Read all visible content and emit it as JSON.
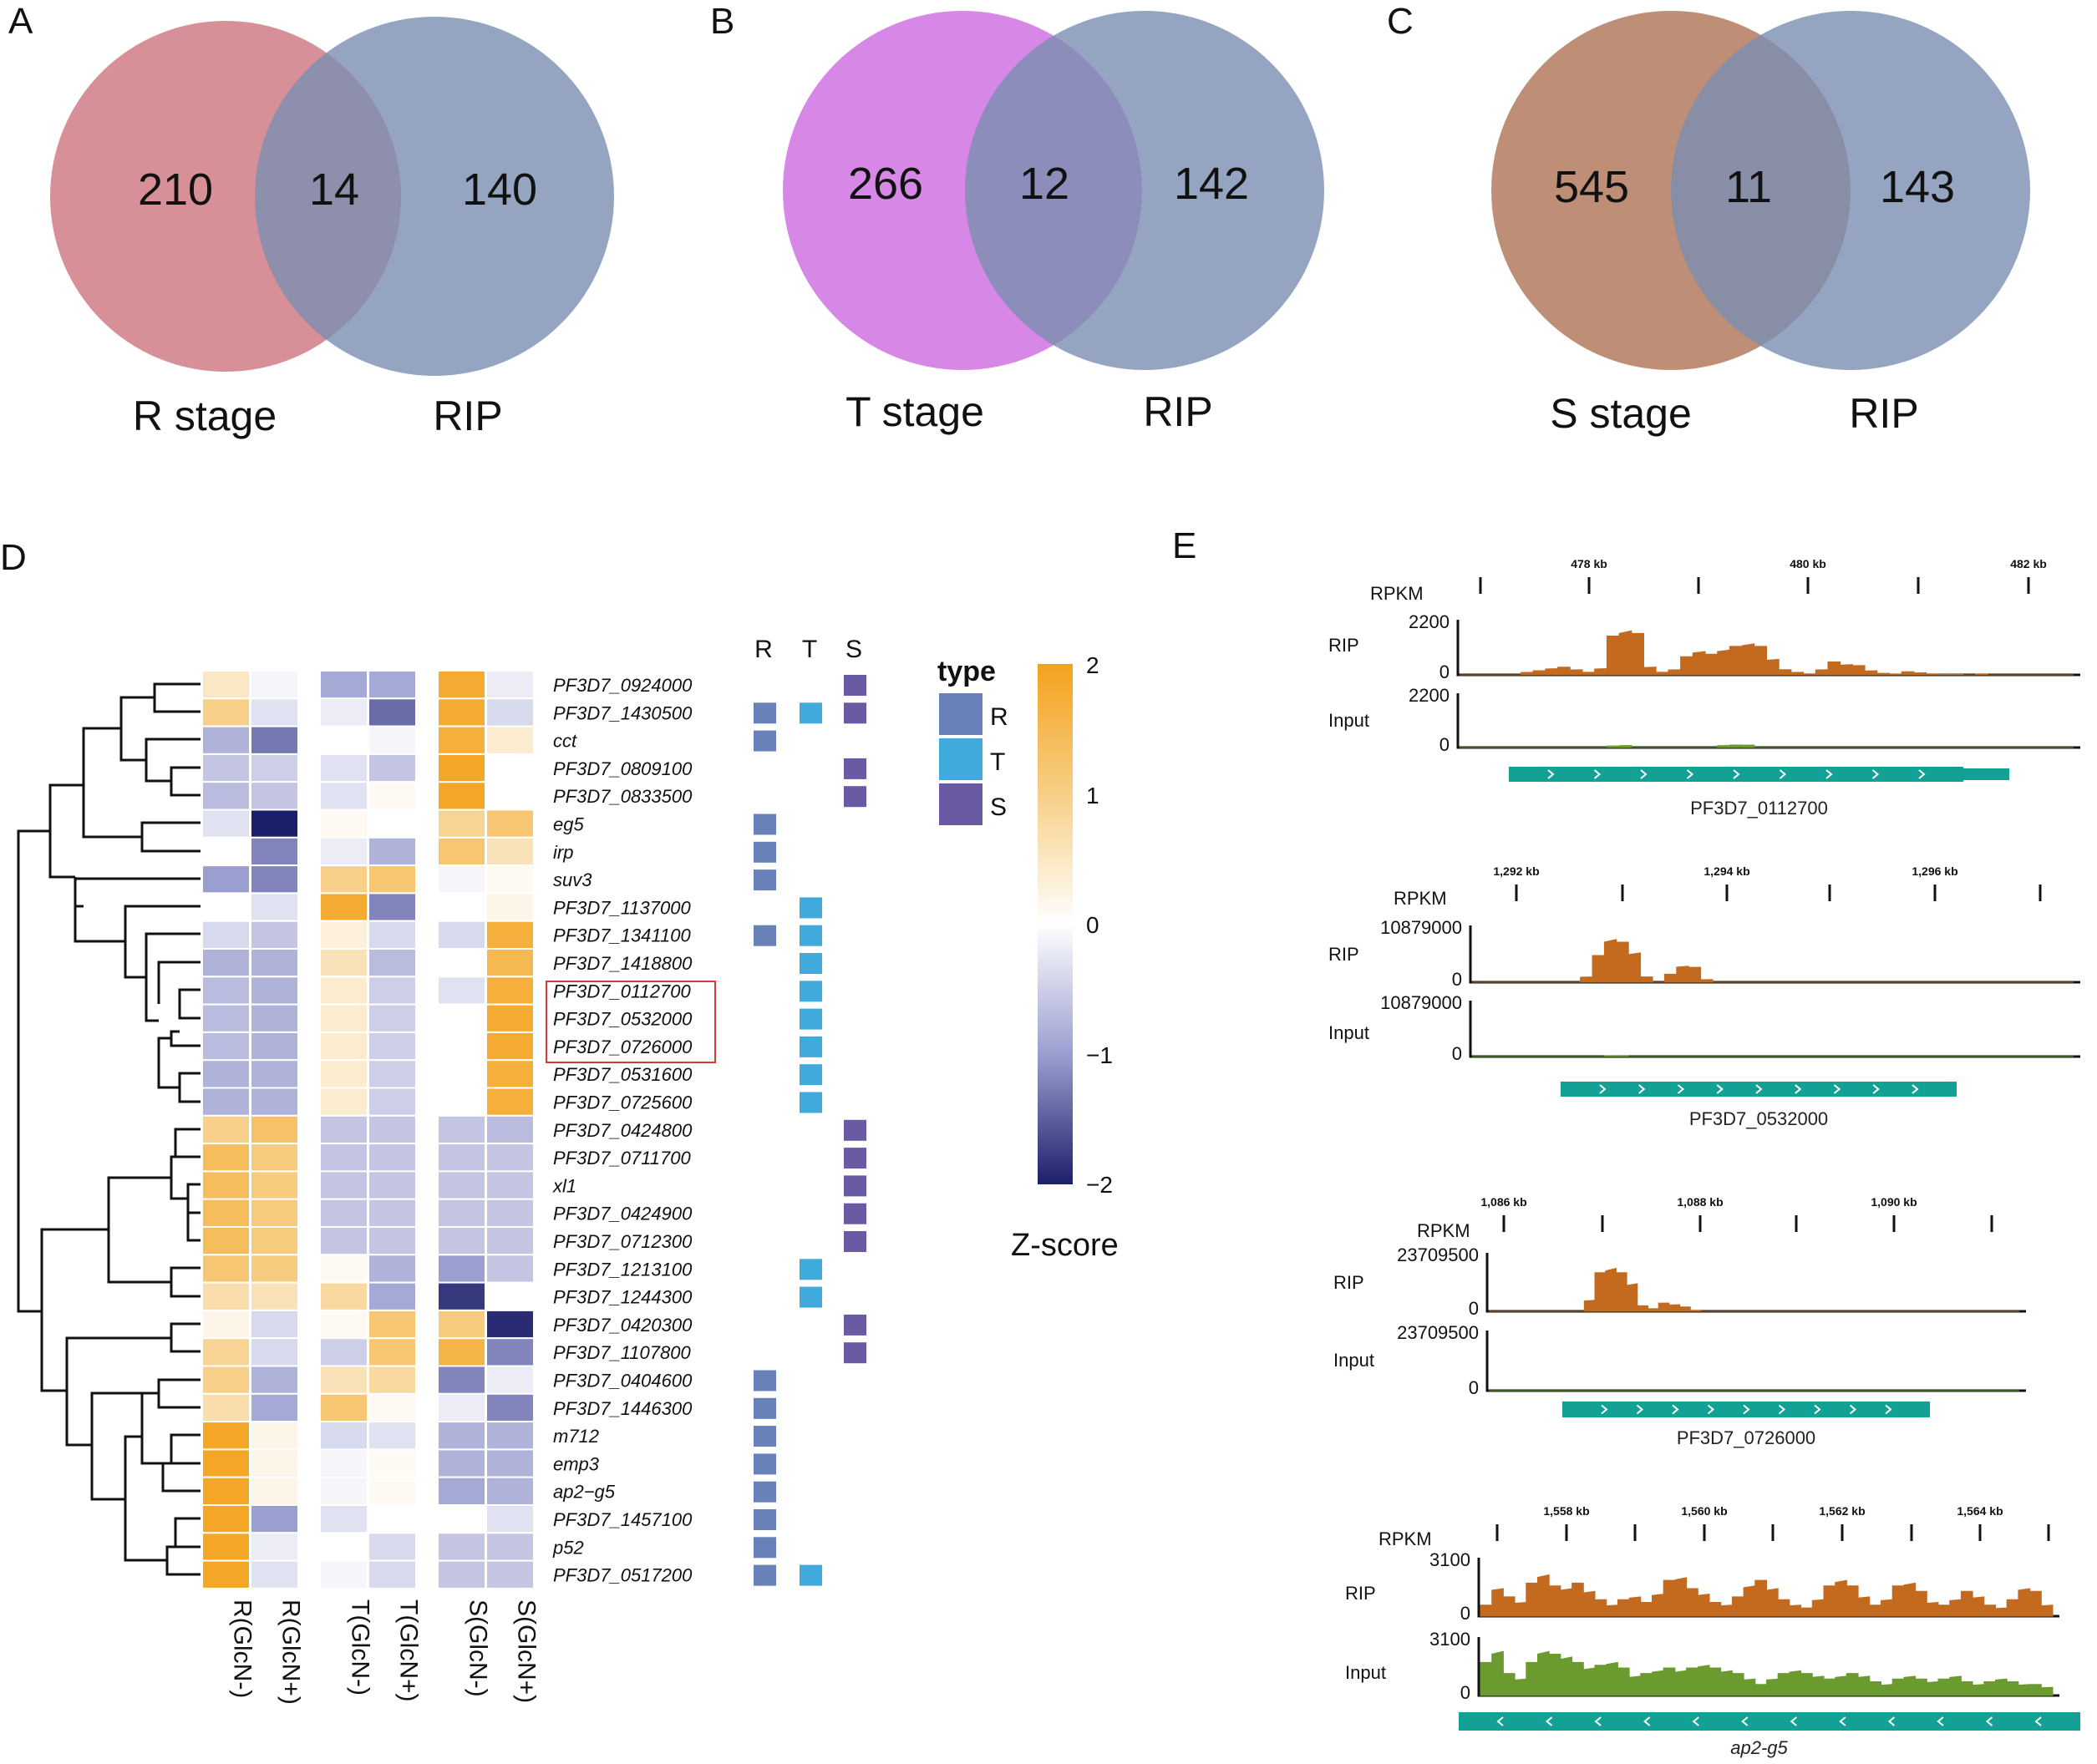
{
  "panels": {
    "A": "A",
    "B": "B",
    "C": "C",
    "D": "D",
    "E": "E"
  },
  "colors": {
    "rip": "#7b8fb2",
    "r_stage": "#c96b75",
    "t_stage": "#c95fdc",
    "s_stage": "#a8684a",
    "type_R": "#6981b9",
    "type_T": "#41aadc",
    "type_S": "#6a59a3",
    "rip_track": "#c46a1f",
    "input_track": "#6b9a2e",
    "gene_model": "#13a095",
    "highlight_box": "#d43b3b"
  },
  "chart_data": [
    {
      "type": "venn",
      "panel": "A",
      "sets": [
        "R stage",
        "RIP"
      ],
      "counts": {
        "left_only": "210",
        "overlap": "14",
        "right_only": "140"
      }
    },
    {
      "type": "venn",
      "panel": "B",
      "sets": [
        "T stage",
        "RIP"
      ],
      "counts": {
        "left_only": "266",
        "overlap": "12",
        "right_only": "142"
      }
    },
    {
      "type": "venn",
      "panel": "C",
      "sets": [
        "S stage",
        "RIP"
      ],
      "counts": {
        "left_only": "545",
        "overlap": "11",
        "right_only": "143"
      }
    },
    {
      "type": "heatmap",
      "panel": "D",
      "columns": [
        "R(GlcN-)",
        "R(GlcN+)",
        "T(GlcN-)",
        "T(GlcN+)",
        "S(GlcN-)",
        "S(GlcN+)"
      ],
      "rows": [
        "PF3D7_0924000",
        "PF3D7_1430500",
        "cct",
        "PF3D7_0809100",
        "PF3D7_0833500",
        "eg5",
        "irp",
        "suv3",
        "PF3D7_1137000",
        "PF3D7_1341100",
        "PF3D7_1418800",
        "PF3D7_0112700",
        "PF3D7_0532000",
        "PF3D7_0726000",
        "PF3D7_0531600",
        "PF3D7_0725600",
        "PF3D7_0424800",
        "PF3D7_0711700",
        "xl1",
        "PF3D7_0424900",
        "PF3D7_0712300",
        "PF3D7_1213100",
        "PF3D7_1244300",
        "PF3D7_0420300",
        "PF3D7_1107800",
        "PF3D7_0404600",
        "PF3D7_1446300",
        "m712",
        "emp3",
        "ap2-g5",
        "PF3D7_1457100",
        "p52",
        "PF3D7_0517200"
      ],
      "row_labels": [
        "PF3D7_0924000",
        "PF3D7_1430500",
        "cct",
        "PF3D7_0809100",
        "PF3D7_0833500",
        "eg5",
        "irp",
        "suv3",
        "PF3D7_1137000",
        "PF3D7_1341100",
        "PF3D7_1418800",
        "PF3D7_0112700",
        "PF3D7_0532000",
        "PF3D7_0726000",
        "PF3D7_0531600",
        "PF3D7_0725600",
        "PF3D7_0424800",
        "PF3D7_0711700",
        "xl1",
        "PF3D7_0424900",
        "PF3D7_0712300",
        "PF3D7_1213100",
        "PF3D7_1244300",
        "PF3D7_0420300",
        "PF3D7_1107800",
        "PF3D7_0404600",
        "PF3D7_1446300",
        "m712",
        "emp3",
        "ap2−g5",
        "PF3D7_1457100",
        "p52",
        "PF3D7_0517200"
      ],
      "values": [
        [
          0.5,
          -0.1,
          -0.9,
          -0.9,
          1.8,
          -0.2
        ],
        [
          1.0,
          -0.3,
          -0.2,
          -1.4,
          1.8,
          -0.4
        ],
        [
          -0.8,
          -1.3,
          0.0,
          -0.1,
          1.7,
          0.4
        ],
        [
          -0.6,
          -0.5,
          -0.3,
          -0.6,
          1.9,
          0.0
        ],
        [
          -0.7,
          -0.6,
          -0.3,
          0.1,
          1.9,
          0.0
        ],
        [
          -0.3,
          -2.0,
          0.1,
          0.0,
          0.9,
          1.2
        ],
        [
          0.0,
          -1.2,
          -0.2,
          -0.8,
          1.2,
          0.6
        ],
        [
          -1.0,
          -1.2,
          1.0,
          1.2,
          -0.1,
          0.1
        ],
        [
          0.0,
          -0.3,
          1.8,
          -1.2,
          0.0,
          0.2
        ],
        [
          -0.4,
          -0.6,
          0.3,
          -0.4,
          -0.4,
          1.7
        ],
        [
          -0.8,
          -0.8,
          0.6,
          -0.7,
          0.0,
          1.5
        ],
        [
          -0.7,
          -0.8,
          0.4,
          -0.5,
          -0.3,
          1.7
        ],
        [
          -0.7,
          -0.8,
          0.4,
          -0.5,
          0.0,
          1.8
        ],
        [
          -0.7,
          -0.8,
          0.4,
          -0.5,
          0.0,
          1.8
        ],
        [
          -0.8,
          -0.8,
          0.4,
          -0.5,
          0.0,
          1.7
        ],
        [
          -0.8,
          -0.8,
          0.4,
          -0.5,
          0.0,
          1.7
        ],
        [
          1.0,
          1.3,
          -0.6,
          -0.6,
          -0.6,
          -0.7
        ],
        [
          1.4,
          1.1,
          -0.6,
          -0.6,
          -0.6,
          -0.6
        ],
        [
          1.4,
          1.1,
          -0.6,
          -0.6,
          -0.6,
          -0.6
        ],
        [
          1.4,
          1.1,
          -0.6,
          -0.6,
          -0.6,
          -0.6
        ],
        [
          1.4,
          1.1,
          -0.6,
          -0.6,
          -0.6,
          -0.6
        ],
        [
          1.2,
          1.1,
          0.1,
          -0.8,
          -1.0,
          -0.6
        ],
        [
          0.7,
          0.6,
          0.8,
          -0.9,
          -1.8,
          0.0
        ],
        [
          0.2,
          -0.4,
          0.1,
          1.2,
          1.1,
          -1.9
        ],
        [
          0.9,
          -0.4,
          -0.5,
          1.2,
          1.6,
          -1.2
        ],
        [
          1.0,
          -0.8,
          0.6,
          0.8,
          -1.2,
          -0.2
        ],
        [
          0.7,
          -0.9,
          1.2,
          0.1,
          -0.2,
          -1.2
        ],
        [
          1.9,
          0.2,
          -0.4,
          -0.3,
          -0.8,
          -0.8
        ],
        [
          1.9,
          0.2,
          -0.1,
          0.1,
          -0.8,
          -0.8
        ],
        [
          1.9,
          0.2,
          -0.1,
          0.1,
          -0.9,
          -0.8
        ],
        [
          1.9,
          -1.0,
          -0.3,
          0.0,
          0.0,
          -0.3
        ],
        [
          1.9,
          -0.2,
          0.0,
          -0.4,
          -0.6,
          -0.6
        ],
        [
          1.9,
          -0.3,
          -0.1,
          -0.4,
          -0.6,
          -0.6
        ]
      ],
      "type_annotation_headers": [
        "R",
        "T",
        "S"
      ],
      "type_annotation": [
        [
          "",
          "",
          "S"
        ],
        [
          "R",
          "T",
          "S"
        ],
        [
          "R",
          "",
          ""
        ],
        [
          "",
          "",
          "S"
        ],
        [
          "",
          "",
          "S"
        ],
        [
          "R",
          "",
          ""
        ],
        [
          "R",
          "",
          ""
        ],
        [
          "R",
          "",
          ""
        ],
        [
          "",
          "T",
          ""
        ],
        [
          "R",
          "T",
          ""
        ],
        [
          "",
          "T",
          ""
        ],
        [
          "",
          "T",
          ""
        ],
        [
          "",
          "T",
          ""
        ],
        [
          "",
          "T",
          ""
        ],
        [
          "",
          "T",
          ""
        ],
        [
          "",
          "T",
          ""
        ],
        [
          "",
          "",
          "S"
        ],
        [
          "",
          "",
          "S"
        ],
        [
          "",
          "",
          "S"
        ],
        [
          "",
          "",
          "S"
        ],
        [
          "",
          "",
          "S"
        ],
        [
          "",
          "T",
          ""
        ],
        [
          "",
          "T",
          ""
        ],
        [
          "",
          "",
          "S"
        ],
        [
          "",
          "",
          "S"
        ],
        [
          "R",
          "",
          ""
        ],
        [
          "R",
          "",
          ""
        ],
        [
          "R",
          "",
          ""
        ],
        [
          "R",
          "",
          ""
        ],
        [
          "R",
          "",
          ""
        ],
        [
          "R",
          "",
          ""
        ],
        [
          "R",
          "",
          ""
        ],
        [
          "R",
          "T",
          ""
        ]
      ],
      "highlighted_rows": [
        "PF3D7_0112700",
        "PF3D7_0532000",
        "PF3D7_0726000"
      ],
      "legend": {
        "title": "type",
        "entries": [
          "R",
          "T",
          "S"
        ]
      },
      "colorbar": {
        "title": "Z-score",
        "range": [
          -2,
          2
        ],
        "ticks": [
          "2",
          "1",
          "0",
          "−1",
          "−2"
        ]
      }
    },
    {
      "type": "area",
      "panel": "E",
      "tracks": [
        {
          "gene": "PF3D7_0112700",
          "axis_unit": "RPKM",
          "ticks": [
            "478 kb",
            "480 kb",
            "482 kb"
          ],
          "rip_max": "2200",
          "input_max": "2200",
          "zero": "0",
          "strand": "+",
          "rip_profile": [
            0,
            0,
            0,
            0,
            0,
            0.05,
            0.08,
            0.12,
            0.15,
            0.1,
            0.05,
            0.12,
            0.75,
            0.85,
            0.8,
            0.15,
            0.05,
            0.1,
            0.35,
            0.45,
            0.4,
            0.48,
            0.55,
            0.6,
            0.55,
            0.3,
            0.1,
            0.05,
            0.02,
            0.1,
            0.25,
            0.2,
            0.18,
            0.08,
            0.03,
            0.02,
            0.06,
            0.04,
            0.02,
            0.01,
            0.01,
            0.0,
            0.02,
            0.0,
            0.0,
            0.0,
            0.0,
            0.0,
            0.0,
            0.0
          ],
          "input_profile": [
            0,
            0,
            0,
            0,
            0,
            0,
            0,
            0,
            0,
            0,
            0,
            0,
            0.03,
            0.04,
            0,
            0,
            0,
            0,
            0,
            0,
            0,
            0.04,
            0.05,
            0.05,
            0,
            0,
            0,
            0,
            0,
            0,
            0,
            0,
            0,
            0,
            0,
            0,
            0,
            0,
            0,
            0,
            0,
            0,
            0,
            0,
            0,
            0,
            0,
            0,
            0,
            0
          ]
        },
        {
          "gene": "PF3D7_0532000",
          "axis_unit": "RPKM",
          "ticks": [
            "1,292 kb",
            "1,294 kb",
            "1,296 kb"
          ],
          "rip_max": "10879000",
          "input_max": "10879000",
          "zero": "0",
          "strand": "+",
          "rip_profile": [
            0,
            0,
            0,
            0,
            0,
            0,
            0,
            0,
            0,
            0.1,
            0.5,
            0.8,
            0.75,
            0.55,
            0.1,
            0,
            0.15,
            0.3,
            0.28,
            0.05,
            0,
            0,
            0,
            0,
            0,
            0,
            0,
            0,
            0,
            0,
            0,
            0,
            0,
            0,
            0,
            0,
            0,
            0,
            0,
            0,
            0,
            0,
            0,
            0,
            0,
            0,
            0,
            0,
            0,
            0
          ],
          "input_profile": [
            0,
            0,
            0,
            0,
            0,
            0,
            0,
            0,
            0,
            0,
            0,
            0.02,
            0.02,
            0,
            0,
            0,
            0,
            0,
            0,
            0,
            0,
            0,
            0,
            0,
            0,
            0,
            0,
            0,
            0,
            0,
            0,
            0,
            0,
            0,
            0,
            0,
            0,
            0,
            0,
            0,
            0,
            0,
            0,
            0,
            0,
            0,
            0,
            0,
            0,
            0
          ]
        },
        {
          "gene": "PF3D7_0726000",
          "axis_unit": "RPKM",
          "ticks": [
            "1,086 kb",
            "1,088 kb",
            "1,090 kb"
          ],
          "rip_max": "23709500",
          "input_max": "23709500",
          "zero": "0",
          "strand": "+",
          "rip_profile": [
            0,
            0,
            0,
            0,
            0,
            0,
            0,
            0,
            0,
            0.2,
            0.7,
            0.78,
            0.7,
            0.5,
            0.1,
            0.05,
            0.15,
            0.12,
            0.08,
            0.02,
            0,
            0,
            0,
            0,
            0,
            0,
            0,
            0,
            0,
            0,
            0,
            0,
            0,
            0,
            0,
            0,
            0,
            0,
            0,
            0,
            0,
            0,
            0,
            0,
            0,
            0,
            0,
            0,
            0,
            0
          ],
          "input_profile": [
            0,
            0,
            0,
            0,
            0,
            0,
            0,
            0,
            0,
            0,
            0,
            0,
            0,
            0,
            0,
            0,
            0,
            0,
            0,
            0,
            0,
            0,
            0,
            0,
            0,
            0,
            0,
            0,
            0,
            0,
            0,
            0,
            0,
            0,
            0,
            0,
            0,
            0,
            0,
            0,
            0,
            0,
            0,
            0,
            0,
            0,
            0,
            0,
            0,
            0
          ]
        },
        {
          "gene": "ap2-g5",
          "gene_label": "ap2-g5",
          "axis_unit": "RPKM",
          "ticks": [
            "1,558 kb",
            "1,560 kb",
            "1,562 kb",
            "1,564 kb"
          ],
          "rip_max": "3100",
          "input_max": "3100",
          "zero": "0",
          "strand": "-",
          "rip_profile": [
            0.2,
            0.5,
            0.35,
            0.25,
            0.6,
            0.75,
            0.55,
            0.5,
            0.6,
            0.45,
            0.3,
            0.2,
            0.3,
            0.35,
            0.25,
            0.4,
            0.65,
            0.7,
            0.5,
            0.4,
            0.25,
            0.2,
            0.35,
            0.55,
            0.65,
            0.5,
            0.3,
            0.2,
            0.15,
            0.3,
            0.55,
            0.65,
            0.55,
            0.35,
            0.2,
            0.3,
            0.55,
            0.6,
            0.45,
            0.25,
            0.2,
            0.3,
            0.45,
            0.35,
            0.2,
            0.15,
            0.3,
            0.5,
            0.45,
            0.2
          ],
          "input_profile": [
            0.6,
            0.8,
            0.4,
            0.3,
            0.6,
            0.8,
            0.75,
            0.7,
            0.6,
            0.5,
            0.55,
            0.6,
            0.5,
            0.35,
            0.4,
            0.45,
            0.5,
            0.45,
            0.5,
            0.55,
            0.5,
            0.45,
            0.4,
            0.3,
            0.2,
            0.3,
            0.4,
            0.45,
            0.4,
            0.35,
            0.3,
            0.35,
            0.4,
            0.35,
            0.25,
            0.2,
            0.3,
            0.35,
            0.3,
            0.25,
            0.3,
            0.35,
            0.25,
            0.2,
            0.25,
            0.3,
            0.25,
            0.2,
            0.2,
            0.15
          ]
        }
      ],
      "track_labels": {
        "rip": "RIP",
        "input": "Input"
      }
    }
  ]
}
